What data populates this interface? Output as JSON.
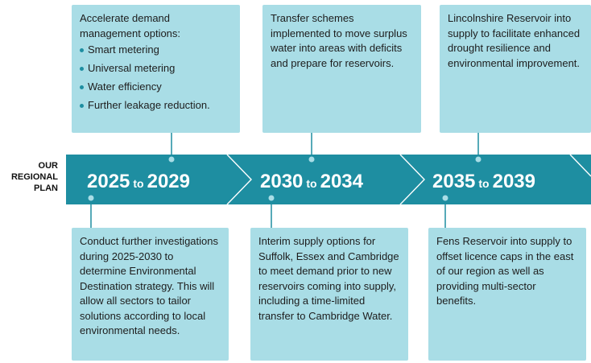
{
  "side_label": [
    "OUR",
    "REGIONAL",
    "PLAN"
  ],
  "periods": [
    {
      "start": "2025",
      "to": "to",
      "end": "2029",
      "top_text": "Accelerate demand management options:",
      "top_bullets": [
        "Smart metering",
        "Universal metering",
        "Water efficiency",
        "Further leakage reduction."
      ],
      "bottom_text": "Conduct further investigations during 2025-2030 to determine Environmental Destination strategy. This will allow all sectors to tailor solutions according to local environmental needs."
    },
    {
      "start": "2030",
      "to": "to",
      "end": "2034",
      "top_text": "Transfer schemes implemented to move surplus water into areas with deficits and prepare for reservoirs.",
      "bottom_text": "Interim supply options for Suffolk, Essex and Cambridge to meet demand prior to new reservoirs coming into supply, including a time-limited transfer to Cambridge Water."
    },
    {
      "start": "2035",
      "to": "to",
      "end": "2039",
      "top_text": "Lincolnshire Reservoir into supply to facilitate enhanced drought resilience and environmental improvement.",
      "bottom_text": "Fens Reservoir into supply to offset licence caps in the east of our region as well as providing multi-sector benefits."
    }
  ],
  "colors": {
    "band": "#1e8ea1",
    "box": "#a9dde6",
    "connector": "#1e8ea1",
    "text": "#1d1d1d"
  }
}
